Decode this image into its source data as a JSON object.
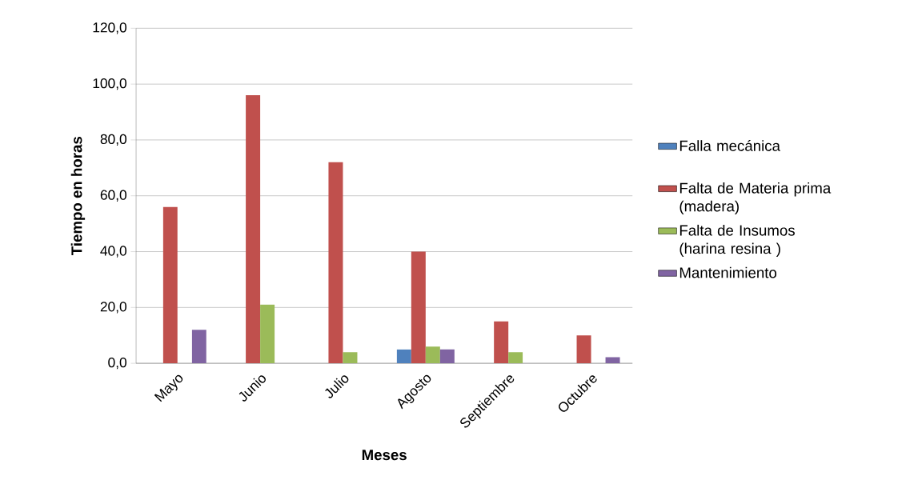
{
  "chart_data": {
    "type": "bar",
    "xlabel": "Meses",
    "ylabel": "Tiempo en horas",
    "categories": [
      "Mayo",
      "Junio",
      "Julio",
      "Agosto",
      "Septiembre",
      "Octubre"
    ],
    "series": [
      {
        "name": "Falla mecánica",
        "color": "#4f81bd",
        "values": [
          null,
          null,
          null,
          5,
          null,
          null
        ]
      },
      {
        "name": "Falta de Materia prima (madera)",
        "color": "#c0504d",
        "values": [
          56,
          96,
          72,
          40,
          15,
          10
        ]
      },
      {
        "name": "Falta de Insumos (harina resina )",
        "color": "#9bbb59",
        "values": [
          null,
          21,
          4,
          6,
          4,
          null
        ]
      },
      {
        "name": "Mantenimiento",
        "color": "#8064a2",
        "values": [
          12,
          null,
          null,
          5,
          null,
          2.2
        ]
      }
    ],
    "ylim": [
      0,
      120
    ],
    "yticks": [
      {
        "value": 0,
        "label": "0,0"
      },
      {
        "value": 20,
        "label": "20,0"
      },
      {
        "value": 40,
        "label": "40,0"
      },
      {
        "value": 60,
        "label": "60,0"
      },
      {
        "value": 80,
        "label": "80,0"
      },
      {
        "value": 100,
        "label": "100,0"
      },
      {
        "value": 120,
        "label": "120,0"
      }
    ],
    "grid": "y",
    "legend": "right"
  }
}
